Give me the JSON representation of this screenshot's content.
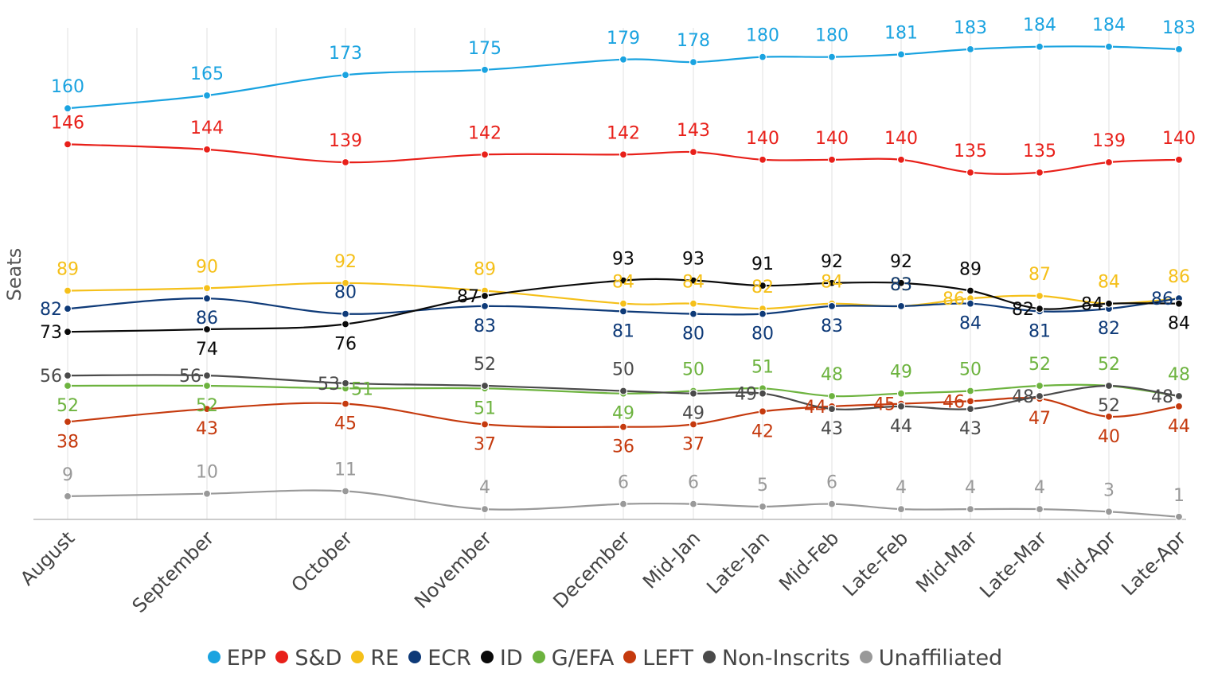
{
  "chart_data": {
    "type": "line",
    "ylabel": "Seats",
    "x": [
      "August",
      "September",
      "October",
      "November",
      "December",
      "Mid-Jan",
      "Late-Jan",
      "Mid-Feb",
      "Late-Feb",
      "Mid-Mar",
      "Late-Mar",
      "Mid-Apr",
      "Late-Apr"
    ],
    "ylim": [
      0,
      190
    ],
    "grid": "vertical",
    "legend_position": "bottom",
    "series": [
      {
        "name": "EPP",
        "color": "#1aa3e0",
        "values": [
          160,
          165,
          173,
          175,
          179,
          178,
          180,
          180,
          181,
          183,
          184,
          184,
          183
        ]
      },
      {
        "name": "S&D",
        "color": "#e8201a",
        "values": [
          146,
          144,
          139,
          142,
          142,
          143,
          140,
          140,
          140,
          135,
          135,
          139,
          140
        ]
      },
      {
        "name": "RE",
        "color": "#f5c01a",
        "values": [
          89,
          90,
          92,
          89,
          84,
          84,
          82,
          84,
          83,
          86,
          87,
          84,
          86
        ]
      },
      {
        "name": "ECR",
        "color": "#0e3a78",
        "values": [
          82,
          86,
          80,
          83,
          81,
          80,
          80,
          83,
          83,
          84,
          81,
          82,
          86
        ]
      },
      {
        "name": "ID",
        "color": "#0a0a0a",
        "values": [
          73,
          74,
          76,
          87,
          93,
          93,
          91,
          92,
          92,
          89,
          82,
          84,
          84
        ]
      },
      {
        "name": "G/EFA",
        "color": "#6db33f",
        "values": [
          52,
          52,
          51,
          51,
          49,
          50,
          51,
          48,
          49,
          50,
          52,
          52,
          48
        ]
      },
      {
        "name": "LEFT",
        "color": "#c53a0e",
        "values": [
          38,
          43,
          45,
          37,
          36,
          37,
          42,
          44,
          45,
          46,
          47,
          40,
          44
        ]
      },
      {
        "name": "Non-Inscrits",
        "color": "#4a4a4a",
        "values": [
          56,
          56,
          53,
          52,
          50,
          49,
          49,
          43,
          44,
          43,
          48,
          52,
          48
        ]
      },
      {
        "name": "Unaffiliated",
        "color": "#999999",
        "values": [
          9,
          10,
          11,
          4,
          6,
          6,
          5,
          6,
          4,
          4,
          4,
          3,
          1
        ]
      }
    ]
  }
}
